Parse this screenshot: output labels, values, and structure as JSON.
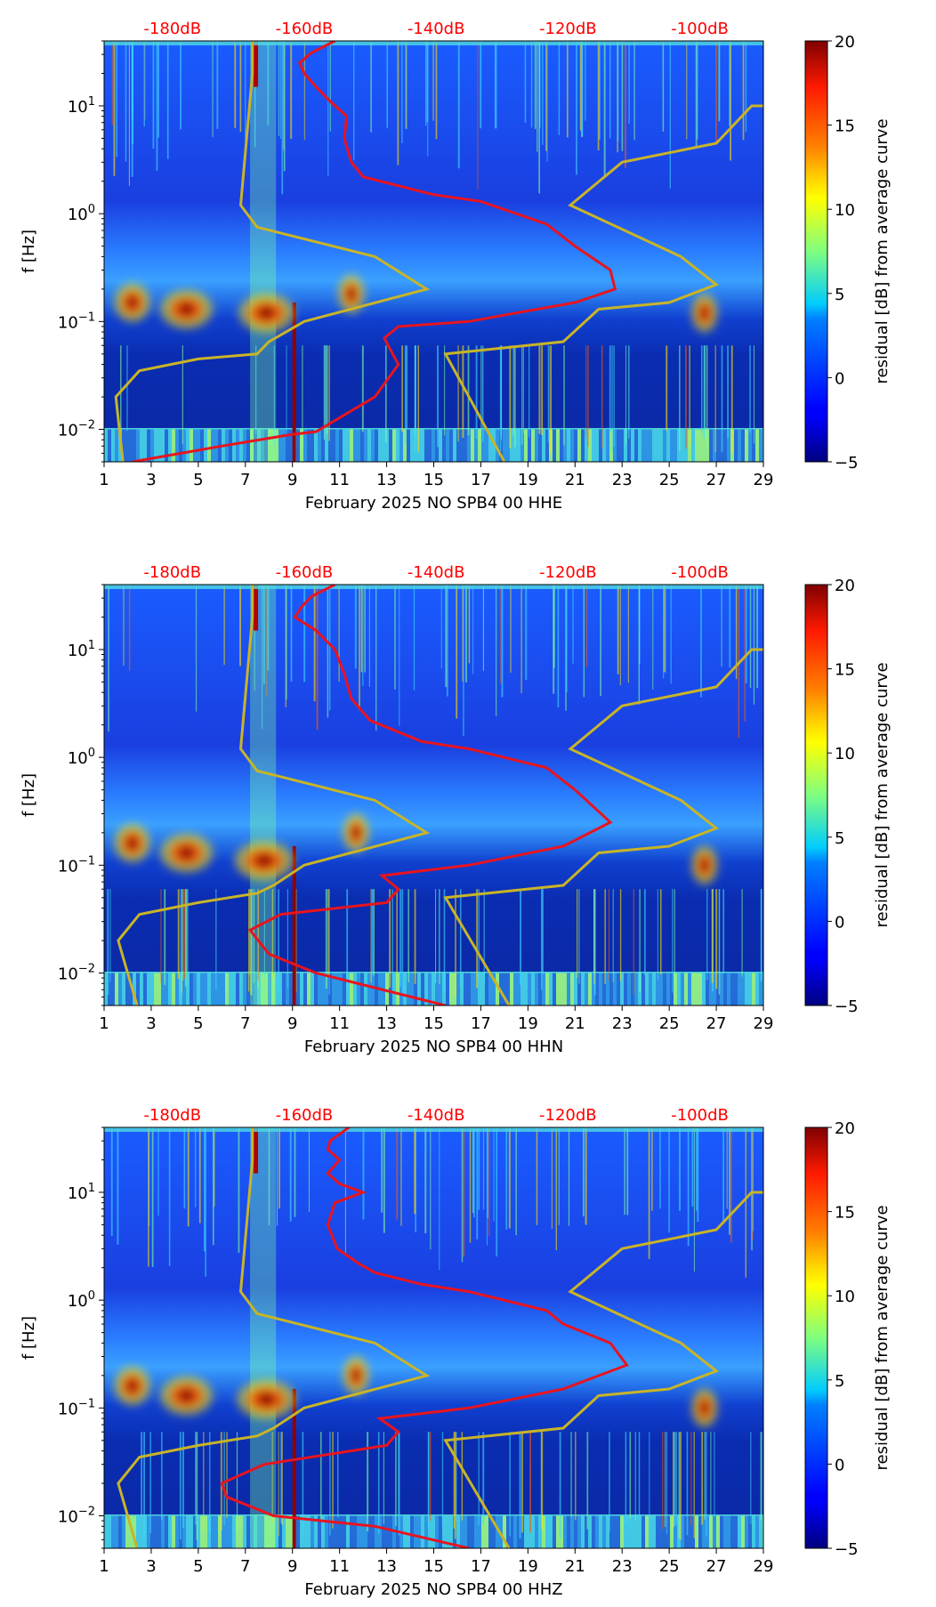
{
  "chart_data": [
    {
      "type": "heatmap",
      "title": "",
      "xlabel": "February 2025 NO SPB4 00 HHE",
      "ylabel": "f [Hz]",
      "x_ticks": [
        "1",
        "3",
        "5",
        "7",
        "9",
        "11",
        "13",
        "15",
        "17",
        "19",
        "21",
        "23",
        "25",
        "27",
        "29"
      ],
      "xlim": [
        1,
        29
      ],
      "y_ticks": [
        {
          "value": 0.01,
          "base": "10",
          "exp": "−2"
        },
        {
          "value": 0.1,
          "base": "10",
          "exp": "−1"
        },
        {
          "value": 1,
          "base": "10",
          "exp": "0"
        },
        {
          "value": 10,
          "base": "10",
          "exp": "1"
        }
      ],
      "ylim": [
        0.005,
        40
      ],
      "top_labels": [
        {
          "text": "-180dB",
          "day": 3.9
        },
        {
          "text": "-160dB",
          "day": 9.5
        },
        {
          "text": "-140dB",
          "day": 15.1
        },
        {
          "text": "-120dB",
          "day": 20.7
        },
        {
          "text": "-100dB",
          "day": 26.3
        }
      ],
      "colorbar": {
        "label": "residual [dB] from average curve",
        "ticks": [
          "−5",
          "0",
          "5",
          "10",
          "15",
          "20"
        ],
        "range": [
          -5,
          20
        ]
      },
      "red_curve": [
        [
          2.2,
          0.005
        ],
        [
          6,
          0.007
        ],
        [
          9,
          0.009
        ],
        [
          10,
          0.0095
        ],
        [
          12.5,
          0.02
        ],
        [
          13.5,
          0.04
        ],
        [
          12.9,
          0.07
        ],
        [
          13.5,
          0.09
        ],
        [
          16.5,
          0.1
        ],
        [
          18.5,
          0.12
        ],
        [
          21,
          0.15
        ],
        [
          22.7,
          0.2
        ],
        [
          22.5,
          0.3
        ],
        [
          21,
          0.5
        ],
        [
          19.8,
          0.8
        ],
        [
          17,
          1.3
        ],
        [
          15,
          1.5
        ],
        [
          12,
          2.2
        ],
        [
          11.5,
          3
        ],
        [
          11.2,
          5
        ],
        [
          11.3,
          8
        ],
        [
          10.6,
          11
        ],
        [
          10,
          15
        ],
        [
          9.5,
          20
        ],
        [
          9.3,
          25
        ],
        [
          9.8,
          31
        ],
        [
          10.8,
          40
        ]
      ],
      "lnm_curve": [
        [
          1.8,
          0.005
        ],
        [
          1.5,
          0.02
        ],
        [
          2.5,
          0.035
        ],
        [
          5,
          0.045
        ],
        [
          7.5,
          0.05
        ],
        [
          8,
          0.065
        ],
        [
          9.5,
          0.1
        ],
        [
          14.7,
          0.2
        ],
        [
          12.5,
          0.4
        ],
        [
          7.5,
          0.75
        ],
        [
          6.8,
          1.2
        ],
        [
          7.3,
          20
        ],
        [
          7.3,
          40
        ]
      ],
      "hnm_curve": [
        [
          18,
          0.005
        ],
        [
          15.5,
          0.05
        ],
        [
          20.5,
          0.065
        ],
        [
          22,
          0.13
        ],
        [
          25,
          0.15
        ],
        [
          27,
          0.22
        ],
        [
          25.5,
          0.4
        ],
        [
          20.8,
          1.2
        ],
        [
          23,
          3
        ],
        [
          27,
          4.5
        ],
        [
          28.5,
          10
        ],
        [
          29,
          10
        ]
      ],
      "energy_patches": [
        [
          4.5,
          0.13,
          1.6
        ],
        [
          7.9,
          0.12,
          1.7
        ],
        [
          2.2,
          0.15,
          1.1
        ],
        [
          11.5,
          0.18,
          0.8
        ],
        [
          26.5,
          0.12,
          0.8
        ]
      ]
    },
    {
      "type": "heatmap",
      "title": "",
      "xlabel": "February 2025 NO SPB4 00 HHN",
      "ylabel": "f [Hz]",
      "x_ticks": [
        "1",
        "3",
        "5",
        "7",
        "9",
        "11",
        "13",
        "15",
        "17",
        "19",
        "21",
        "23",
        "25",
        "27",
        "29"
      ],
      "xlim": [
        1,
        29
      ],
      "y_ticks": [
        {
          "value": 0.01,
          "base": "10",
          "exp": "−2"
        },
        {
          "value": 0.1,
          "base": "10",
          "exp": "−1"
        },
        {
          "value": 1,
          "base": "10",
          "exp": "0"
        },
        {
          "value": 10,
          "base": "10",
          "exp": "1"
        }
      ],
      "ylim": [
        0.005,
        40
      ],
      "top_labels": [
        {
          "text": "-180dB",
          "day": 3.9
        },
        {
          "text": "-160dB",
          "day": 9.5
        },
        {
          "text": "-140dB",
          "day": 15.1
        },
        {
          "text": "-120dB",
          "day": 20.7
        },
        {
          "text": "-100dB",
          "day": 26.3
        }
      ],
      "colorbar": {
        "label": "residual [dB] from average curve",
        "ticks": [
          "−5",
          "0",
          "5",
          "10",
          "15",
          "20"
        ],
        "range": [
          -5,
          20
        ]
      },
      "red_curve": [
        [
          15.5,
          0.005
        ],
        [
          10,
          0.01
        ],
        [
          8,
          0.015
        ],
        [
          7.2,
          0.025
        ],
        [
          8.5,
          0.035
        ],
        [
          13,
          0.045
        ],
        [
          13.5,
          0.06
        ],
        [
          12.8,
          0.08
        ],
        [
          16.5,
          0.1
        ],
        [
          20.5,
          0.15
        ],
        [
          22.5,
          0.25
        ],
        [
          21,
          0.5
        ],
        [
          19.8,
          0.8
        ],
        [
          16.5,
          1.2
        ],
        [
          14.5,
          1.4
        ],
        [
          12.3,
          2.2
        ],
        [
          11.5,
          3.5
        ],
        [
          11.2,
          6
        ],
        [
          10.8,
          10
        ],
        [
          10,
          15
        ],
        [
          9.1,
          20
        ],
        [
          9.4,
          25
        ],
        [
          9.8,
          31
        ],
        [
          10.8,
          40
        ]
      ],
      "lnm_curve": [
        [
          2.4,
          0.005
        ],
        [
          1.6,
          0.02
        ],
        [
          2.5,
          0.035
        ],
        [
          5,
          0.045
        ],
        [
          7.5,
          0.055
        ],
        [
          8.2,
          0.065
        ],
        [
          9.5,
          0.1
        ],
        [
          14.7,
          0.2
        ],
        [
          12.5,
          0.4
        ],
        [
          7.5,
          0.75
        ],
        [
          6.8,
          1.2
        ],
        [
          7.3,
          20
        ],
        [
          7.3,
          40
        ]
      ],
      "hnm_curve": [
        [
          18.2,
          0.005
        ],
        [
          15.5,
          0.05
        ],
        [
          20.5,
          0.065
        ],
        [
          22,
          0.13
        ],
        [
          25,
          0.15
        ],
        [
          27,
          0.22
        ],
        [
          25.5,
          0.4
        ],
        [
          20.8,
          1.2
        ],
        [
          23,
          3
        ],
        [
          27,
          4.5
        ],
        [
          28.5,
          10
        ],
        [
          29,
          10
        ]
      ],
      "energy_patches": [
        [
          4.5,
          0.13,
          1.6
        ],
        [
          7.8,
          0.11,
          1.8
        ],
        [
          2.2,
          0.16,
          1.1
        ],
        [
          11.7,
          0.2,
          0.8
        ],
        [
          26.5,
          0.1,
          0.8
        ]
      ]
    },
    {
      "type": "heatmap",
      "title": "",
      "xlabel": "February 2025 NO SPB4 00 HHZ",
      "ylabel": "f [Hz]",
      "x_ticks": [
        "1",
        "3",
        "5",
        "7",
        "9",
        "11",
        "13",
        "15",
        "17",
        "19",
        "21",
        "23",
        "25",
        "27",
        "29"
      ],
      "xlim": [
        1,
        29
      ],
      "y_ticks": [
        {
          "value": 0.01,
          "base": "10",
          "exp": "−2"
        },
        {
          "value": 0.1,
          "base": "10",
          "exp": "−1"
        },
        {
          "value": 1,
          "base": "10",
          "exp": "0"
        },
        {
          "value": 10,
          "base": "10",
          "exp": "1"
        }
      ],
      "ylim": [
        0.005,
        40
      ],
      "top_labels": [
        {
          "text": "-180dB",
          "day": 3.9
        },
        {
          "text": "-160dB",
          "day": 9.5
        },
        {
          "text": "-140dB",
          "day": 15.1
        },
        {
          "text": "-120dB",
          "day": 20.7
        },
        {
          "text": "-100dB",
          "day": 26.3
        }
      ],
      "colorbar": {
        "label": "residual [dB] from average curve",
        "ticks": [
          "−5",
          "0",
          "5",
          "10",
          "15",
          "20"
        ],
        "range": [
          -5,
          20
        ]
      },
      "red_curve": [
        [
          16.5,
          0.005
        ],
        [
          12.5,
          0.008
        ],
        [
          8.2,
          0.01
        ],
        [
          6.2,
          0.015
        ],
        [
          6,
          0.02
        ],
        [
          7.8,
          0.03
        ],
        [
          13,
          0.045
        ],
        [
          13.5,
          0.06
        ],
        [
          12.7,
          0.08
        ],
        [
          16.5,
          0.1
        ],
        [
          20.5,
          0.15
        ],
        [
          23.2,
          0.25
        ],
        [
          22.5,
          0.4
        ],
        [
          20.5,
          0.6
        ],
        [
          19.8,
          0.8
        ],
        [
          16.5,
          1.2
        ],
        [
          14.5,
          1.4
        ],
        [
          12.5,
          1.8
        ],
        [
          11.8,
          2.2
        ],
        [
          10.9,
          3
        ],
        [
          10.5,
          5
        ],
        [
          10.8,
          8
        ],
        [
          12,
          10
        ],
        [
          11,
          12
        ],
        [
          10.5,
          15
        ],
        [
          11,
          20
        ],
        [
          10.5,
          25
        ],
        [
          10.6,
          30
        ],
        [
          11.4,
          40
        ]
      ],
      "lnm_curve": [
        [
          2.4,
          0.005
        ],
        [
          1.6,
          0.02
        ],
        [
          2.5,
          0.035
        ],
        [
          5,
          0.045
        ],
        [
          7.5,
          0.055
        ],
        [
          8.2,
          0.065
        ],
        [
          9.5,
          0.1
        ],
        [
          14.7,
          0.2
        ],
        [
          12.5,
          0.4
        ],
        [
          7.5,
          0.75
        ],
        [
          6.8,
          1.2
        ],
        [
          7.3,
          20
        ],
        [
          7.3,
          40
        ]
      ],
      "hnm_curve": [
        [
          18.2,
          0.005
        ],
        [
          15.5,
          0.05
        ],
        [
          20.5,
          0.065
        ],
        [
          22,
          0.13
        ],
        [
          25,
          0.15
        ],
        [
          27,
          0.22
        ],
        [
          25.5,
          0.4
        ],
        [
          20.8,
          1.2
        ],
        [
          23,
          3
        ],
        [
          27,
          4.5
        ],
        [
          28.5,
          10
        ],
        [
          29,
          10
        ]
      ],
      "energy_patches": [
        [
          4.5,
          0.13,
          1.6
        ],
        [
          7.9,
          0.12,
          1.8
        ],
        [
          2.2,
          0.16,
          1.1
        ],
        [
          11.7,
          0.2,
          0.8
        ],
        [
          26.5,
          0.1,
          0.8
        ]
      ]
    }
  ]
}
